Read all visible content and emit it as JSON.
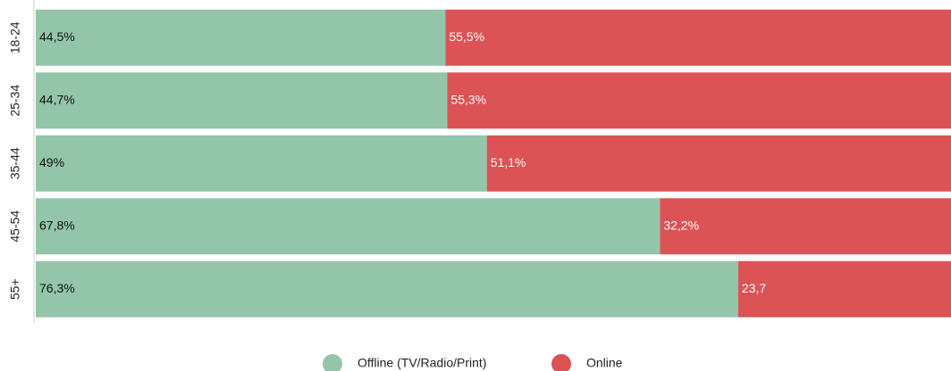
{
  "chart_data": {
    "type": "stacked-barh",
    "categories": [
      "18-24",
      "25-34",
      "35-44",
      "45-54",
      "55+"
    ],
    "xlim": [
      0,
      100
    ],
    "series": [
      {
        "name": "Offline (TV/Radio/Print)",
        "color": "#93c5aa",
        "values": [
          44.5,
          44.7,
          49,
          67.8,
          76.3
        ],
        "value_labels": [
          "44,5%",
          "44,7%",
          "49%",
          "67,8%",
          "76,3%"
        ]
      },
      {
        "name": "Online",
        "color": "#dc5355",
        "values": [
          55.5,
          55.3,
          51.1,
          32.2,
          23.7
        ],
        "value_labels": [
          "55,5%",
          "55,3%",
          "51,1%",
          "32,2%",
          "23,7"
        ]
      }
    ],
    "legend": "bottom"
  }
}
